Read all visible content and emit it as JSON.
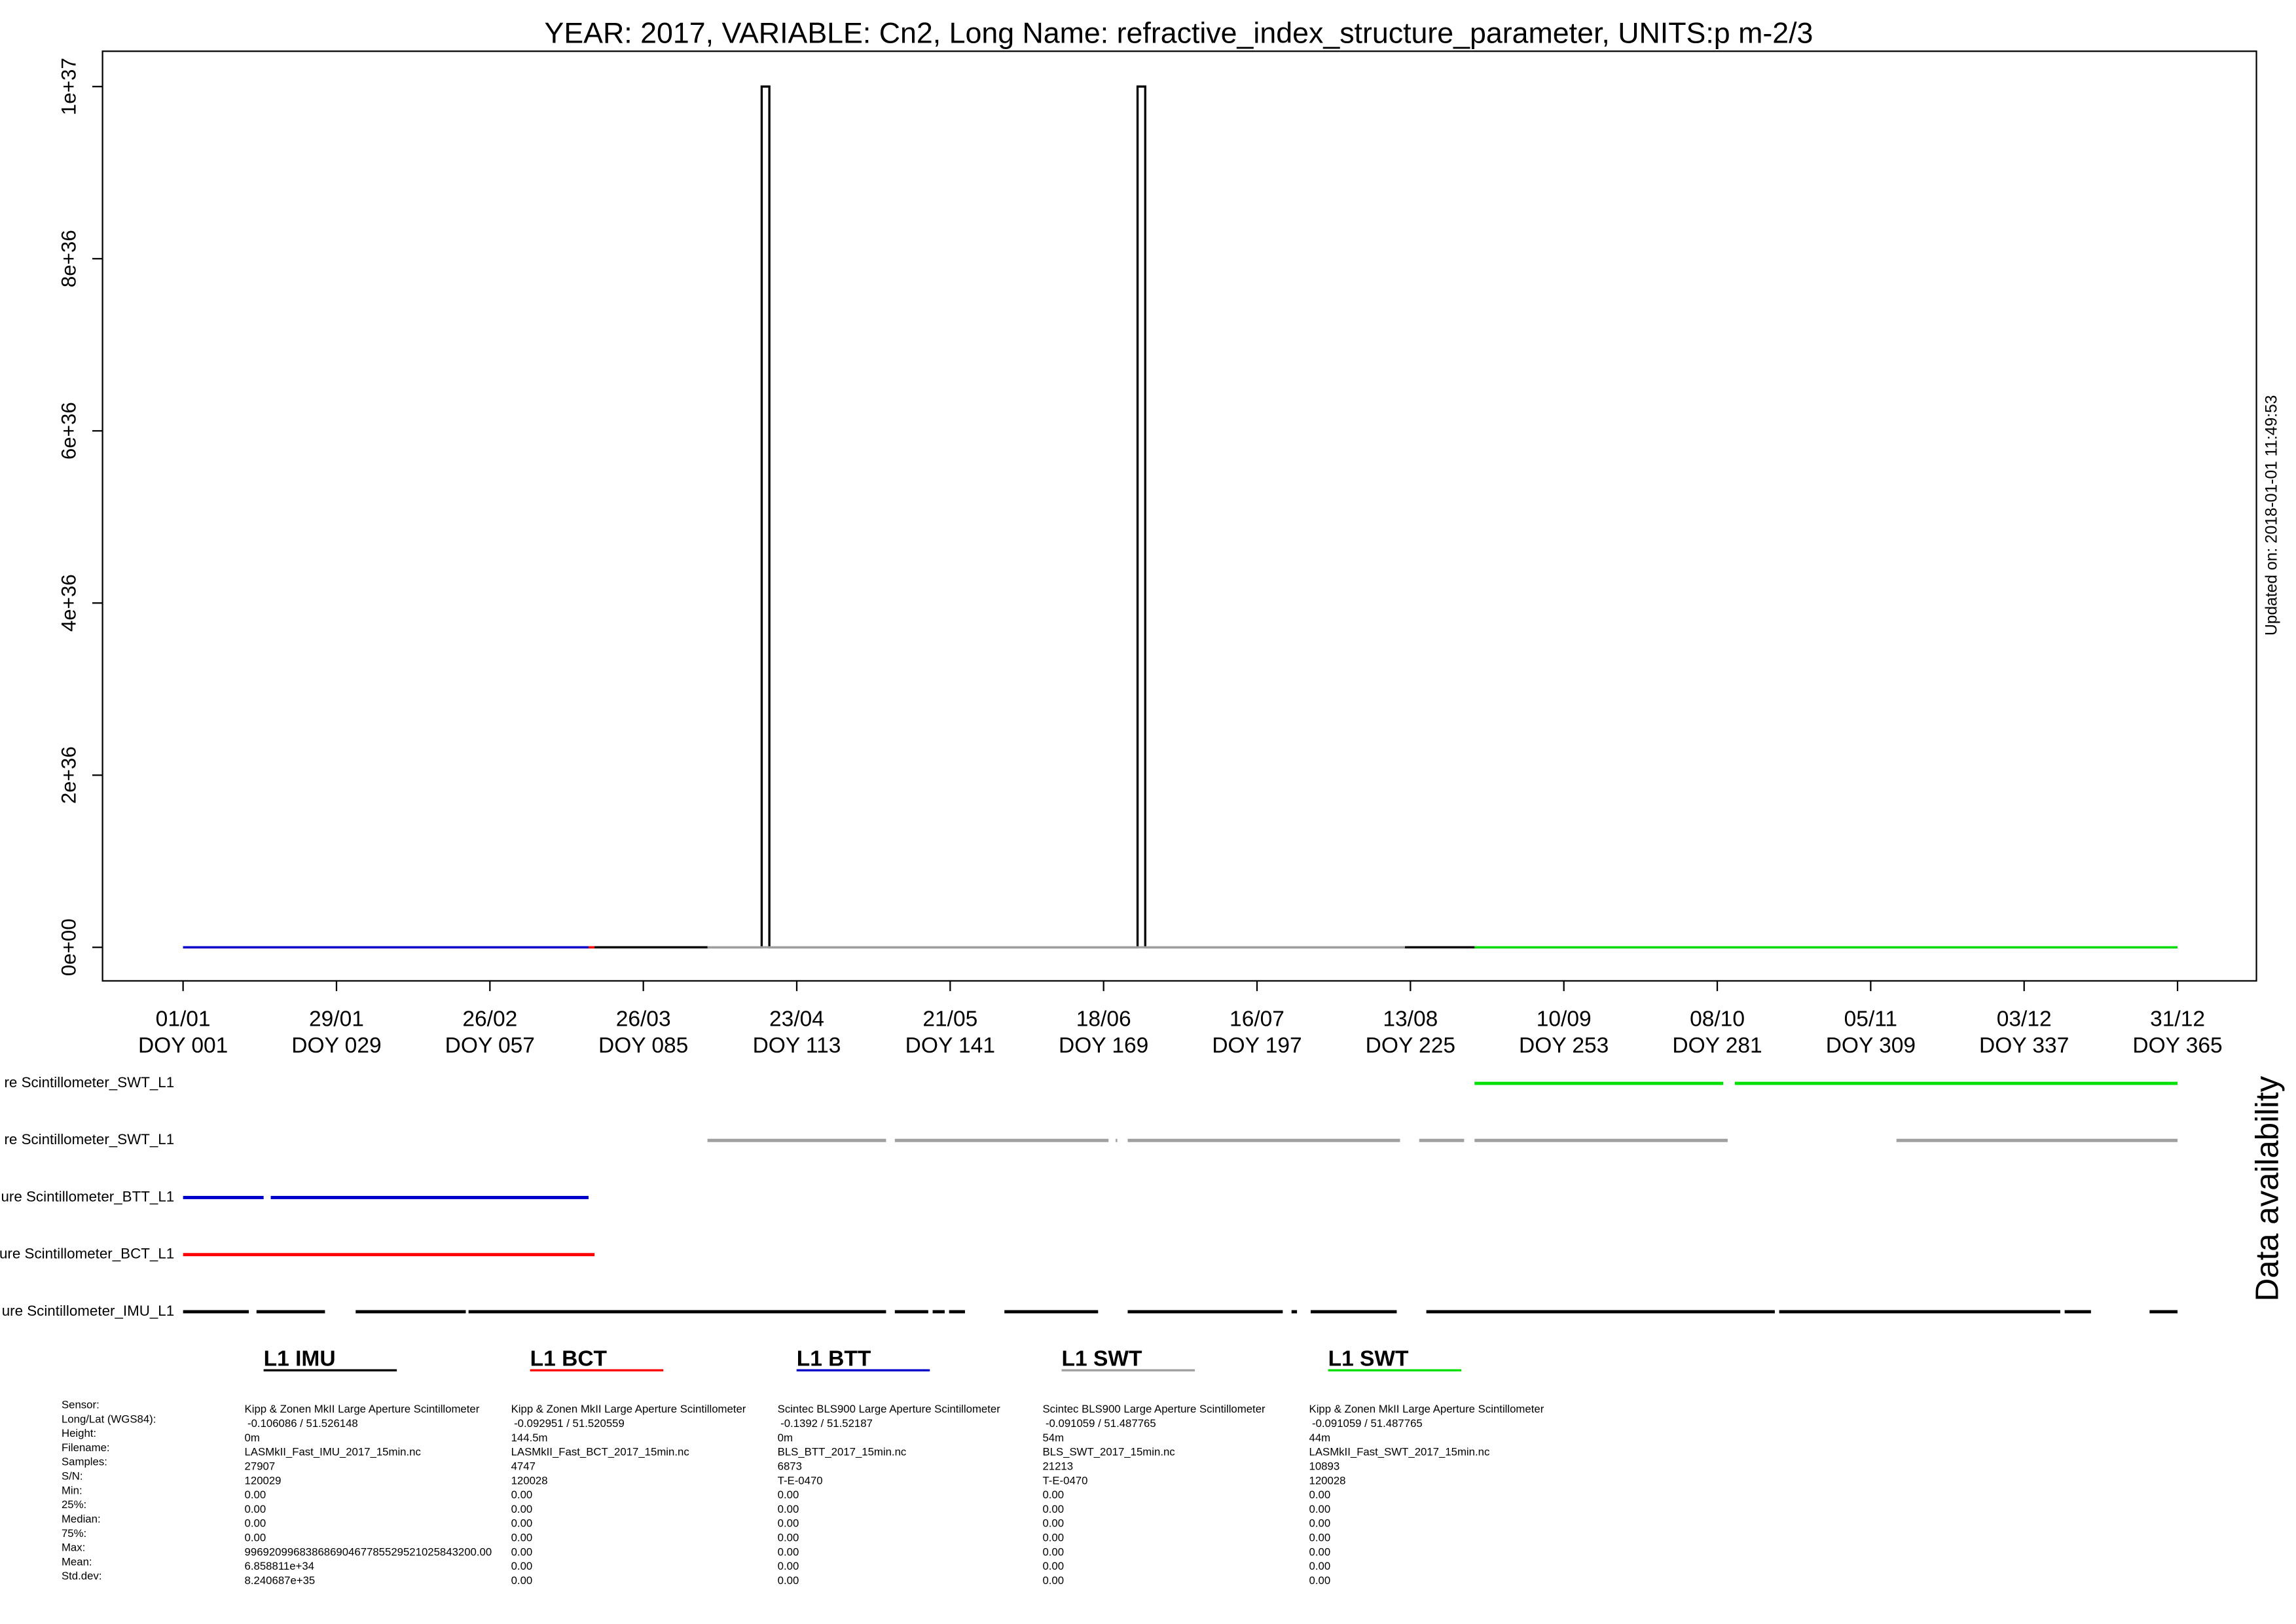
{
  "chart_data": {
    "type": "line",
    "title": "YEAR: 2017, VARIABLE: Cn2, Long Name: refractive_index_structure_parameter, UNITS:p m-2/3",
    "xlim": [
      -13.7,
      379.4
    ],
    "ylim": [
      -3.9e+35,
      1.041e+37
    ],
    "xticks": [
      {
        "value": 1,
        "label": "01/01"
      },
      {
        "value": 29,
        "label": "29/01"
      },
      {
        "value": 57,
        "label": "26/02"
      },
      {
        "value": 85,
        "label": "26/03"
      },
      {
        "value": 113,
        "label": "23/04"
      },
      {
        "value": 141,
        "label": "21/05"
      },
      {
        "value": 169,
        "label": "18/06"
      },
      {
        "value": 197,
        "label": "16/07"
      },
      {
        "value": 225,
        "label": "13/08"
      },
      {
        "value": 253,
        "label": "10/09"
      },
      {
        "value": 281,
        "label": "08/10"
      },
      {
        "value": 309,
        "label": "05/11"
      },
      {
        "value": 337,
        "label": "03/12"
      },
      {
        "value": 365,
        "label": "31/12"
      }
    ],
    "xtick_sublabels": [
      "DOY 001",
      "DOY 029",
      "DOY 057",
      "DOY 085",
      "DOY 113",
      "DOY 141",
      "DOY 169",
      "DOY 197",
      "DOY 225",
      "DOY 253",
      "DOY 281",
      "DOY 309",
      "DOY 337",
      "DOY 365"
    ],
    "yticks": [
      {
        "value": 0,
        "label": "0e+00"
      },
      {
        "value": 2e+36,
        "label": "2e+36"
      },
      {
        "value": 4e+36,
        "label": "4e+36"
      },
      {
        "value": 6e+36,
        "label": "6e+36"
      },
      {
        "value": 8e+36,
        "label": "8e+36"
      },
      {
        "value": 1e+37,
        "label": "1e+37"
      }
    ],
    "series": [
      {
        "name": "L1 IMU",
        "color": "#000000",
        "x": [
          1,
          106.6,
          106.6,
          108,
          108,
          175.2,
          175.2,
          176.6,
          176.6,
          365
        ],
        "values": [
          0,
          0,
          1e+37,
          1e+37,
          0,
          0,
          1e+37,
          1e+37,
          0,
          0
        ]
      },
      {
        "name": "L1 BCT",
        "color": "#ff0000",
        "x": [
          1,
          76.1
        ],
        "values": [
          0,
          0
        ]
      },
      {
        "name": "L1 BTT",
        "color": "#0000cd",
        "x": [
          1,
          75
        ],
        "values": [
          0,
          0
        ]
      },
      {
        "name": "L1 SWT",
        "color": "#a0a0a0",
        "x": [
          96.7,
          224
        ],
        "values": [
          0,
          0
        ]
      },
      {
        "name": "L1 SWT",
        "color": "#00e000",
        "x": [
          236.7,
          365
        ],
        "values": [
          0,
          0
        ]
      }
    ],
    "updated": "Updated on: 2018-01-01 11:49:53",
    "availability_title": "Data availability",
    "availability": [
      {
        "label": "re Scintillometer_SWT_L1",
        "color": "#00e000",
        "intervals": [
          [
            236.7,
            282.1
          ],
          [
            284.2,
            365
          ]
        ]
      },
      {
        "label": "re Scintillometer_SWT_L1",
        "color": "#a0a0a0",
        "intervals": [
          [
            96.7,
            129.3
          ],
          [
            130.9,
            169.9
          ],
          [
            171.2,
            171.5
          ],
          [
            173.4,
            223.1
          ],
          [
            226.6,
            234.8
          ],
          [
            236.7,
            282.9
          ],
          [
            313.7,
            365
          ]
        ]
      },
      {
        "label": "ure Scintillometer_BTT_L1",
        "color": "#0000cd",
        "intervals": [
          [
            1,
            15.7
          ],
          [
            17,
            75
          ]
        ]
      },
      {
        "label": "ure Scintillometer_BCT_L1",
        "color": "#ff0000",
        "intervals": [
          [
            1,
            76.1
          ]
        ]
      },
      {
        "label": "ure Scintillometer_IMU_L1",
        "color": "#000000",
        "intervals": [
          [
            1,
            13
          ],
          [
            14.4,
            26.9
          ],
          [
            32.5,
            52.6
          ],
          [
            53.1,
            129.3
          ],
          [
            130.9,
            137
          ],
          [
            137.8,
            140
          ],
          [
            140.8,
            143.7
          ],
          [
            150.9,
            168
          ],
          [
            173.4,
            201.7
          ],
          [
            203.3,
            204.3
          ],
          [
            206.8,
            222.5
          ],
          [
            227.9,
            291.5
          ],
          [
            292.3,
            343.6
          ],
          [
            344.4,
            349.2
          ],
          [
            359.9,
            365
          ]
        ]
      }
    ]
  },
  "stats": {
    "labels": [
      "Sensor:",
      "Long/Lat (WGS84):",
      "Height:",
      "Filename:",
      "Samples:",
      "S/N:",
      "Min:",
      "25%:",
      "Median:",
      "75%:",
      "Max:",
      "Mean:",
      "Std.dev:"
    ],
    "columns": [
      [
        "Kipp & Zonen MkII Large Aperture Scintillometer",
        "-0.106086 / 51.526148",
        "0m",
        "LASMkII_Fast_IMU_2017_15min.nc",
        "27907",
        "120029",
        "0.00",
        "0.00",
        "0.00",
        "0.00",
        "99692099683868690467785529521025843200.00",
        "6.858811e+34",
        "8.240687e+35"
      ],
      [
        "Kipp & Zonen MkII Large Aperture Scintillometer",
        "-0.092951 / 51.520559",
        "144.5m",
        "LASMkII_Fast_BCT_2017_15min.nc",
        "4747",
        "120028",
        "0.00",
        "0.00",
        "0.00",
        "0.00",
        "0.00",
        "0.00",
        "0.00"
      ],
      [
        "Scintec BLS900 Large Aperture Scintillometer",
        "-0.1392 / 51.52187",
        "0m",
        "BLS_BTT_2017_15min.nc",
        "6873",
        "T-E-0470",
        "0.00",
        "0.00",
        "0.00",
        "0.00",
        "0.00",
        "0.00",
        "0.00"
      ],
      [
        "Scintec BLS900 Large Aperture Scintillometer",
        "-0.091059 / 51.487765",
        "54m",
        "BLS_SWT_2017_15min.nc",
        "21213",
        "T-E-0470",
        "0.00",
        "0.00",
        "0.00",
        "0.00",
        "0.00",
        "0.00",
        "0.00"
      ],
      [
        "Kipp & Zonen MkII Large Aperture Scintillometer",
        "-0.091059 / 51.487765",
        "44m",
        "LASMkII_Fast_SWT_2017_15min.nc",
        "10893",
        "120028",
        "0.00",
        "0.00",
        "0.00",
        "0.00",
        "0.00",
        "0.00",
        "0.00"
      ]
    ]
  }
}
